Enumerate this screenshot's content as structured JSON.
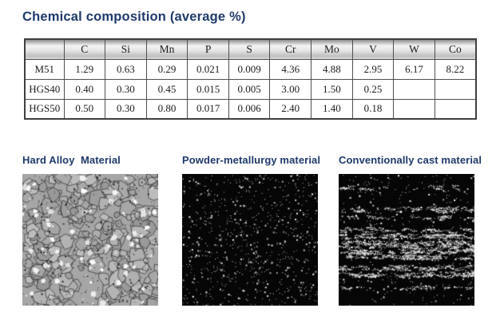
{
  "title": "Chemical composition (average %)",
  "table": {
    "columns": [
      "",
      "C",
      "Si",
      "Mn",
      "P",
      "S",
      "Cr",
      "Mo",
      "V",
      "W",
      "Co"
    ],
    "rows": [
      {
        "label": "M51",
        "values": [
          "1.29",
          "0.63",
          "0.29",
          "0.021",
          "0.009",
          "4.36",
          "4.88",
          "2.95",
          "6.17",
          "8.22"
        ]
      },
      {
        "label": "HGS40",
        "values": [
          "0.40",
          "0.30",
          "0.45",
          "0.015",
          "0.005",
          "3.00",
          "1.50",
          "0.25",
          "",
          ""
        ]
      },
      {
        "label": "HGS50",
        "values": [
          "0.50",
          "0.30",
          "0.80",
          "0.017",
          "0.006",
          "2.40",
          "1.40",
          "0.18",
          "",
          ""
        ]
      }
    ]
  },
  "micrographs": [
    {
      "label": "Hard Alloy  Material",
      "type": "grain"
    },
    {
      "label": "Powder-metallurgy material",
      "type": "uniform-dots"
    },
    {
      "label": "Conventionally cast material",
      "type": "banded-dots"
    }
  ],
  "colors": {
    "heading": "#1e3a6b",
    "table_border": "#4f4f4f",
    "micrograph_dark_bg": "#060606",
    "micrograph_gray_bg": "#a6a6a6"
  }
}
